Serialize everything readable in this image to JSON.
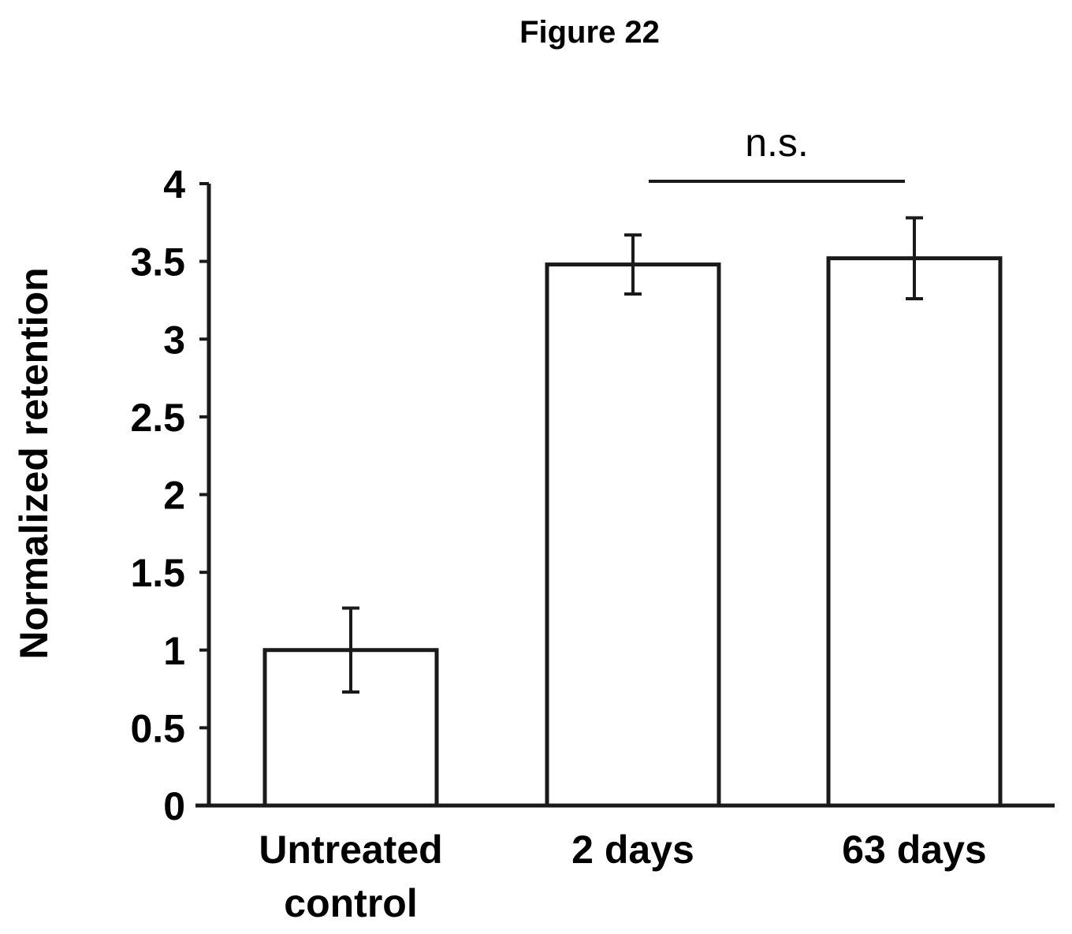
{
  "figure_title": "Figure 22",
  "chart_data": {
    "type": "bar",
    "categories": [
      [
        "Untreated",
        "control"
      ],
      [
        "2 days"
      ],
      [
        "63 days"
      ]
    ],
    "values": [
      1.0,
      3.48,
      3.52
    ],
    "error": [
      0.27,
      0.19,
      0.26
    ],
    "ylabel": "Normalized retention",
    "xlabel": "",
    "ylim": [
      0,
      4
    ],
    "yticks": [
      "0",
      "0.5",
      "1",
      "1.5",
      "2",
      "2.5",
      "3",
      "3.5",
      "4"
    ],
    "grid": false,
    "annotations": [
      {
        "text": "n.s.",
        "between": [
          1,
          2
        ]
      }
    ],
    "colors": {
      "bar_fill": "#ffffff",
      "bar_stroke": "#1a1a1a",
      "axis": "#1a1a1a"
    }
  }
}
